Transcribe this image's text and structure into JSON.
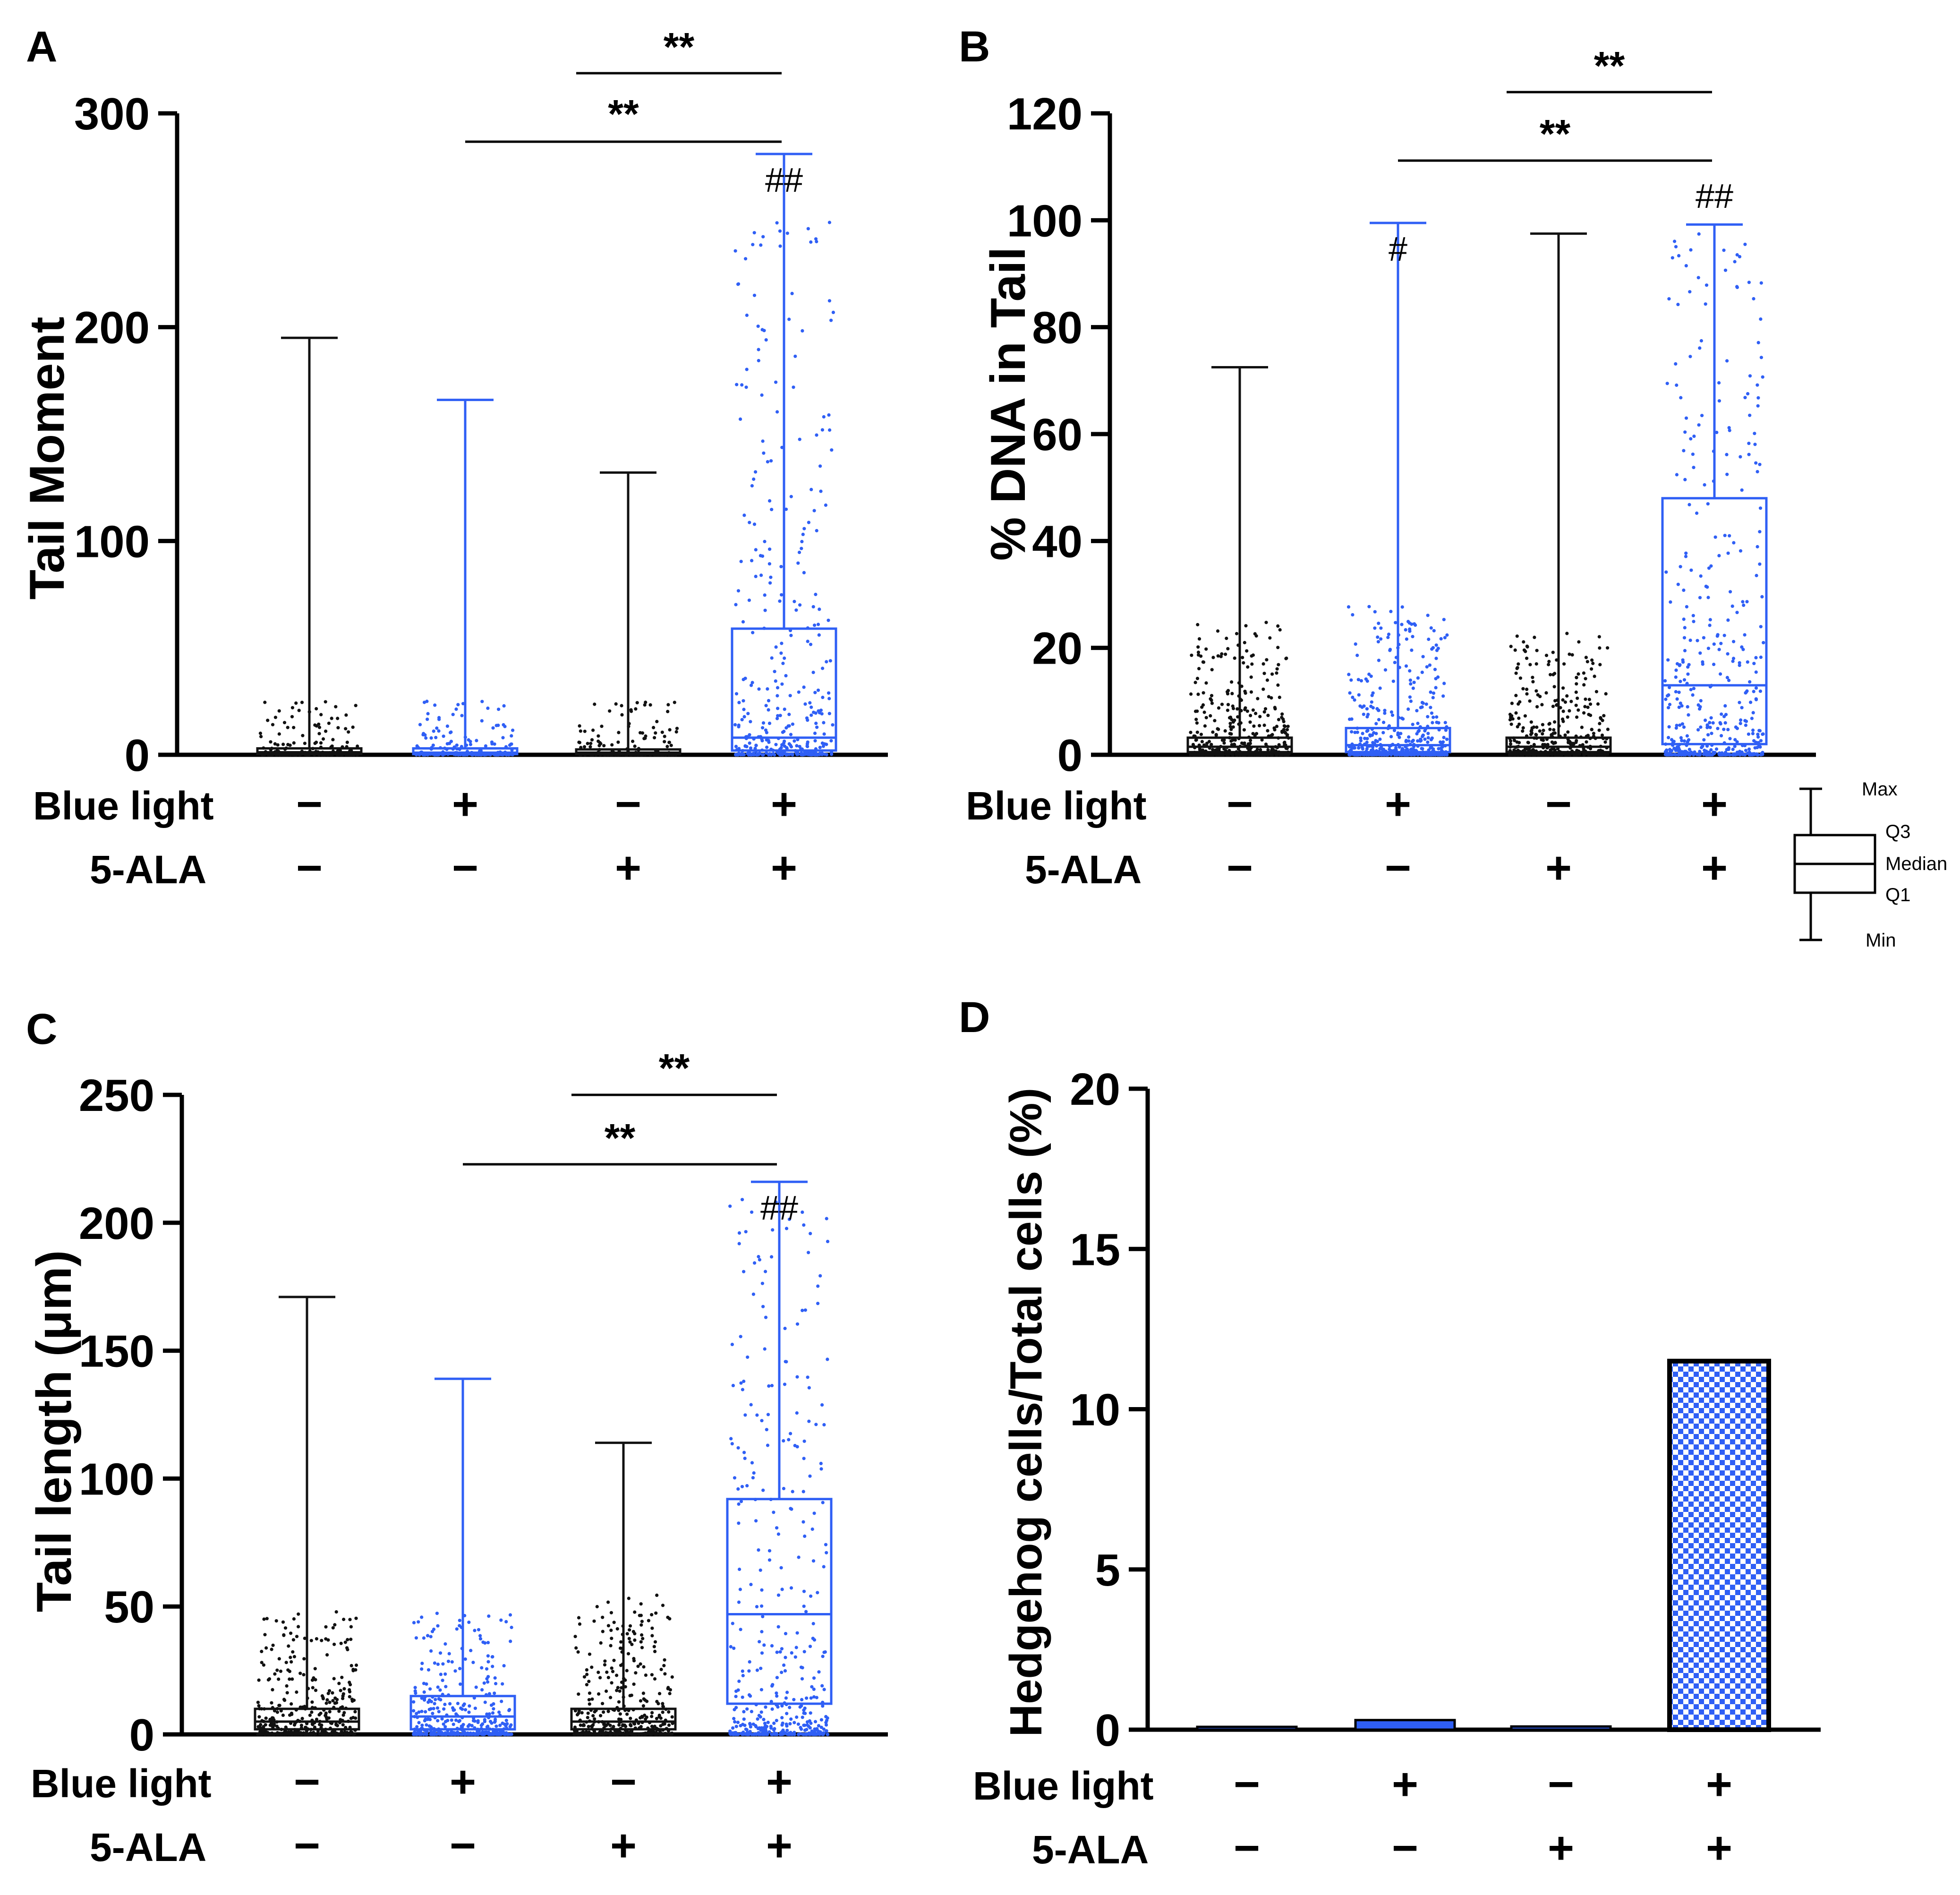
{
  "colors": {
    "black": "#111111",
    "blue": "#2f5ff5",
    "axis": "#000000"
  },
  "row_labels": [
    "Blue light",
    "5-ALA"
  ],
  "chart_data": [
    {
      "panel": "A",
      "type": "box",
      "ylabel": "Tail Moment",
      "ylim": [
        0,
        300
      ],
      "yticks": [
        "0",
        "100",
        "200",
        "300"
      ],
      "blue_light": [
        "−",
        "+",
        "−",
        "+"
      ],
      "ala": [
        "−",
        "−",
        "+",
        "+"
      ],
      "groups": [
        {
          "color": "black",
          "min": 0,
          "q1": 0.3,
          "median": 1.2,
          "q3": 3.0,
          "max": 195,
          "spread": 25,
          "points": 170
        },
        {
          "color": "blue",
          "min": 0,
          "q1": 0.3,
          "median": 1.0,
          "q3": 3.0,
          "max": 166,
          "spread": 25,
          "points": 170
        },
        {
          "color": "black",
          "min": 0,
          "q1": 0.2,
          "median": 1.0,
          "q3": 2.5,
          "max": 132,
          "spread": 25,
          "points": 150
        },
        {
          "color": "blue",
          "min": 0,
          "q1": 2.0,
          "median": 8.0,
          "q3": 59,
          "max": 281,
          "spread": 250,
          "points": 360
        }
      ],
      "annotations": [
        {
          "group": 3,
          "text": "##"
        }
      ],
      "brackets": [
        {
          "from": 3,
          "to": 4,
          "text": "**"
        },
        {
          "from": 2,
          "to": 4,
          "text": "**"
        }
      ]
    },
    {
      "panel": "B",
      "type": "box",
      "ylabel": "% DNA in Tail",
      "ylim": [
        0,
        120
      ],
      "yticks": [
        "0",
        "20",
        "40",
        "60",
        "80",
        "100",
        "120"
      ],
      "blue_light": [
        "−",
        "+",
        "−",
        "+"
      ],
      "ala": [
        "−",
        "−",
        "+",
        "+"
      ],
      "groups": [
        {
          "color": "black",
          "min": 0,
          "q1": 0.5,
          "median": 1.5,
          "q3": 3.2,
          "max": 72.5,
          "spread": 25,
          "points": 420
        },
        {
          "color": "blue",
          "min": 0,
          "q1": 0.5,
          "median": 1.8,
          "q3": 5.0,
          "max": 99.5,
          "spread": 28,
          "points": 420
        },
        {
          "color": "black",
          "min": 0,
          "q1": 0.5,
          "median": 1.5,
          "q3": 3.2,
          "max": 97.5,
          "spread": 23,
          "points": 420
        },
        {
          "color": "blue",
          "min": 0,
          "q1": 2.0,
          "median": 13,
          "q3": 48,
          "max": 99.2,
          "spread": 99,
          "points": 460
        }
      ],
      "annotations": [
        {
          "group": 1,
          "text": "#"
        },
        {
          "group": 3,
          "text": "##"
        }
      ],
      "brackets": [
        {
          "from": 3,
          "to": 4,
          "text": "**"
        },
        {
          "from": 2,
          "to": 4,
          "text": "**"
        }
      ],
      "legend": {
        "max": "Max",
        "q3": "Q3",
        "median": "Median",
        "q1": "Q1",
        "min": "Min"
      }
    },
    {
      "panel": "C",
      "type": "box",
      "ylabel": "Tail length (μm)",
      "ylim": [
        0,
        250
      ],
      "yticks": [
        "0",
        "50",
        "100",
        "150",
        "200",
        "250"
      ],
      "blue_light": [
        "−",
        "+",
        "−",
        "+"
      ],
      "ala": [
        "−",
        "−",
        "+",
        "+"
      ],
      "groups": [
        {
          "color": "black",
          "min": 0,
          "q1": 2,
          "median": 5,
          "q3": 10,
          "max": 171,
          "spread": 48,
          "points": 420
        },
        {
          "color": "blue",
          "min": 0,
          "q1": 2,
          "median": 7,
          "q3": 15,
          "max": 139,
          "spread": 50,
          "points": 420
        },
        {
          "color": "black",
          "min": 0,
          "q1": 2,
          "median": 5,
          "q3": 10,
          "max": 114,
          "spread": 55,
          "points": 420
        },
        {
          "color": "blue",
          "min": 0,
          "q1": 12,
          "median": 47,
          "q3": 92,
          "max": 216,
          "spread": 210,
          "points": 440
        }
      ],
      "annotations": [
        {
          "group": 3,
          "text": "##"
        }
      ],
      "brackets": [
        {
          "from": 3,
          "to": 4,
          "text": "**"
        },
        {
          "from": 2,
          "to": 4,
          "text": "**"
        }
      ]
    },
    {
      "panel": "D",
      "type": "bar",
      "ylabel": "Hedgehog cells/Total cells (%)",
      "ylim": [
        0,
        20
      ],
      "yticks": [
        "0",
        "5",
        "10",
        "15",
        "20"
      ],
      "blue_light": [
        "−",
        "+",
        "−",
        "+"
      ],
      "ala": [
        "−",
        "−",
        "+",
        "+"
      ],
      "values": [
        0.05,
        0.3,
        0.1,
        11.5
      ]
    }
  ]
}
